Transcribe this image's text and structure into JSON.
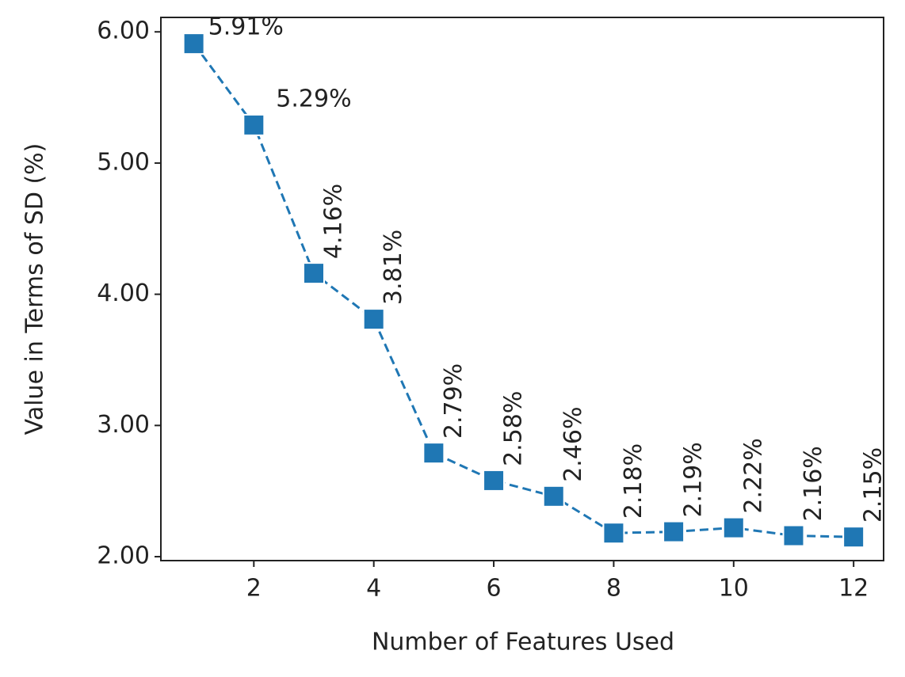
{
  "chart_data": {
    "type": "line",
    "x_label": "Number of Features Used",
    "y_label": "Value in Terms of SD (%)",
    "x": [
      1,
      2,
      3,
      4,
      5,
      6,
      7,
      8,
      9,
      10,
      11,
      12
    ],
    "values": [
      5.91,
      5.29,
      4.16,
      3.81,
      2.79,
      2.58,
      2.46,
      2.18,
      2.19,
      2.22,
      2.16,
      2.15
    ],
    "value_labels": [
      "5.91%",
      "5.29%",
      "4.16%",
      "3.81%",
      "2.79%",
      "2.58%",
      "2.46%",
      "2.18%",
      "2.19%",
      "2.22%",
      "2.16%",
      "2.15%"
    ],
    "color": "#1f77b4",
    "xlim": [
      0.45,
      12.5
    ],
    "ylim": [
      1.97,
      6.11
    ],
    "xticks": [
      2,
      4,
      6,
      8,
      10,
      12
    ],
    "yticks": [
      {
        "value": 2,
        "label": "2.00"
      },
      {
        "value": 3,
        "label": "3.00"
      },
      {
        "value": 4,
        "label": "4.00"
      },
      {
        "value": 5,
        "label": "5.00"
      },
      {
        "value": 6,
        "label": "6.00"
      }
    ]
  }
}
